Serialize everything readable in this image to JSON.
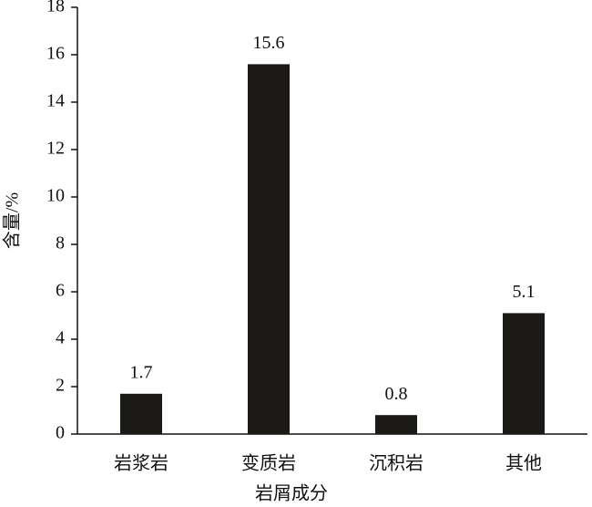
{
  "chart_data": {
    "type": "bar",
    "x_label": "岩屑成分",
    "y_label": "含量/%",
    "categories": [
      "岩浆岩",
      "变质岩",
      "沉积岩",
      "其他"
    ],
    "values": [
      1.7,
      15.6,
      0.8,
      5.1
    ],
    "color": "#1c1a16",
    "ylim": [
      0,
      18
    ],
    "yticks": [
      0,
      2,
      4,
      6,
      8,
      10,
      12,
      14,
      16,
      18
    ],
    "grid": false
  }
}
